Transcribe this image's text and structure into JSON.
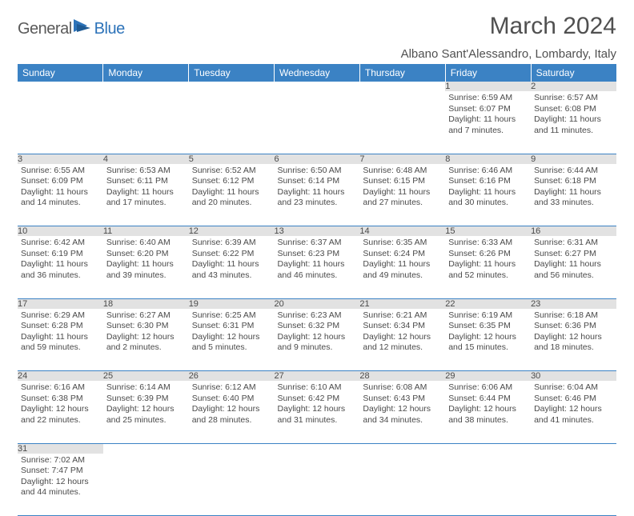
{
  "logo": {
    "part1": "General",
    "part2": "Blue"
  },
  "title": "March 2024",
  "subtitle": "Albano Sant'Alessandro, Lombardy, Italy",
  "colors": {
    "header_bg": "#3b82c4",
    "header_text": "#ffffff",
    "daynum_bg": "#e2e2e2",
    "border": "#3b82c4",
    "text": "#4a4a4a",
    "logo_accent": "#2d73b9"
  },
  "weekdays": [
    "Sunday",
    "Monday",
    "Tuesday",
    "Wednesday",
    "Thursday",
    "Friday",
    "Saturday"
  ],
  "weeks": [
    [
      null,
      null,
      null,
      null,
      null,
      {
        "n": "1",
        "sunrise": "6:59 AM",
        "sunset": "6:07 PM",
        "daylight_h": "11",
        "daylight_m": "7"
      },
      {
        "n": "2",
        "sunrise": "6:57 AM",
        "sunset": "6:08 PM",
        "daylight_h": "11",
        "daylight_m": "11"
      }
    ],
    [
      {
        "n": "3",
        "sunrise": "6:55 AM",
        "sunset": "6:09 PM",
        "daylight_h": "11",
        "daylight_m": "14"
      },
      {
        "n": "4",
        "sunrise": "6:53 AM",
        "sunset": "6:11 PM",
        "daylight_h": "11",
        "daylight_m": "17"
      },
      {
        "n": "5",
        "sunrise": "6:52 AM",
        "sunset": "6:12 PM",
        "daylight_h": "11",
        "daylight_m": "20"
      },
      {
        "n": "6",
        "sunrise": "6:50 AM",
        "sunset": "6:14 PM",
        "daylight_h": "11",
        "daylight_m": "23"
      },
      {
        "n": "7",
        "sunrise": "6:48 AM",
        "sunset": "6:15 PM",
        "daylight_h": "11",
        "daylight_m": "27"
      },
      {
        "n": "8",
        "sunrise": "6:46 AM",
        "sunset": "6:16 PM",
        "daylight_h": "11",
        "daylight_m": "30"
      },
      {
        "n": "9",
        "sunrise": "6:44 AM",
        "sunset": "6:18 PM",
        "daylight_h": "11",
        "daylight_m": "33"
      }
    ],
    [
      {
        "n": "10",
        "sunrise": "6:42 AM",
        "sunset": "6:19 PM",
        "daylight_h": "11",
        "daylight_m": "36"
      },
      {
        "n": "11",
        "sunrise": "6:40 AM",
        "sunset": "6:20 PM",
        "daylight_h": "11",
        "daylight_m": "39"
      },
      {
        "n": "12",
        "sunrise": "6:39 AM",
        "sunset": "6:22 PM",
        "daylight_h": "11",
        "daylight_m": "43"
      },
      {
        "n": "13",
        "sunrise": "6:37 AM",
        "sunset": "6:23 PM",
        "daylight_h": "11",
        "daylight_m": "46"
      },
      {
        "n": "14",
        "sunrise": "6:35 AM",
        "sunset": "6:24 PM",
        "daylight_h": "11",
        "daylight_m": "49"
      },
      {
        "n": "15",
        "sunrise": "6:33 AM",
        "sunset": "6:26 PM",
        "daylight_h": "11",
        "daylight_m": "52"
      },
      {
        "n": "16",
        "sunrise": "6:31 AM",
        "sunset": "6:27 PM",
        "daylight_h": "11",
        "daylight_m": "56"
      }
    ],
    [
      {
        "n": "17",
        "sunrise": "6:29 AM",
        "sunset": "6:28 PM",
        "daylight_h": "11",
        "daylight_m": "59"
      },
      {
        "n": "18",
        "sunrise": "6:27 AM",
        "sunset": "6:30 PM",
        "daylight_h": "12",
        "daylight_m": "2"
      },
      {
        "n": "19",
        "sunrise": "6:25 AM",
        "sunset": "6:31 PM",
        "daylight_h": "12",
        "daylight_m": "5"
      },
      {
        "n": "20",
        "sunrise": "6:23 AM",
        "sunset": "6:32 PM",
        "daylight_h": "12",
        "daylight_m": "9"
      },
      {
        "n": "21",
        "sunrise": "6:21 AM",
        "sunset": "6:34 PM",
        "daylight_h": "12",
        "daylight_m": "12"
      },
      {
        "n": "22",
        "sunrise": "6:19 AM",
        "sunset": "6:35 PM",
        "daylight_h": "12",
        "daylight_m": "15"
      },
      {
        "n": "23",
        "sunrise": "6:18 AM",
        "sunset": "6:36 PM",
        "daylight_h": "12",
        "daylight_m": "18"
      }
    ],
    [
      {
        "n": "24",
        "sunrise": "6:16 AM",
        "sunset": "6:38 PM",
        "daylight_h": "12",
        "daylight_m": "22"
      },
      {
        "n": "25",
        "sunrise": "6:14 AM",
        "sunset": "6:39 PM",
        "daylight_h": "12",
        "daylight_m": "25"
      },
      {
        "n": "26",
        "sunrise": "6:12 AM",
        "sunset": "6:40 PM",
        "daylight_h": "12",
        "daylight_m": "28"
      },
      {
        "n": "27",
        "sunrise": "6:10 AM",
        "sunset": "6:42 PM",
        "daylight_h": "12",
        "daylight_m": "31"
      },
      {
        "n": "28",
        "sunrise": "6:08 AM",
        "sunset": "6:43 PM",
        "daylight_h": "12",
        "daylight_m": "34"
      },
      {
        "n": "29",
        "sunrise": "6:06 AM",
        "sunset": "6:44 PM",
        "daylight_h": "12",
        "daylight_m": "38"
      },
      {
        "n": "30",
        "sunrise": "6:04 AM",
        "sunset": "6:46 PM",
        "daylight_h": "12",
        "daylight_m": "41"
      }
    ],
    [
      {
        "n": "31",
        "sunrise": "7:02 AM",
        "sunset": "7:47 PM",
        "daylight_h": "12",
        "daylight_m": "44"
      },
      null,
      null,
      null,
      null,
      null,
      null
    ]
  ]
}
